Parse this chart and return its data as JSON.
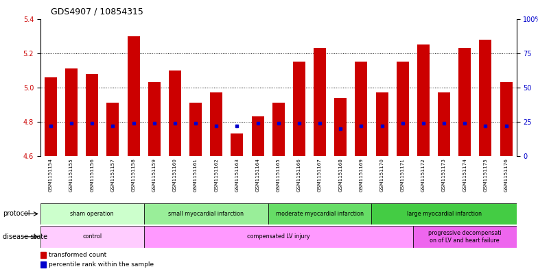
{
  "title": "GDS4907 / 10854315",
  "samples": [
    "GSM1151154",
    "GSM1151155",
    "GSM1151156",
    "GSM1151157",
    "GSM1151158",
    "GSM1151159",
    "GSM1151160",
    "GSM1151161",
    "GSM1151162",
    "GSM1151163",
    "GSM1151164",
    "GSM1151165",
    "GSM1151166",
    "GSM1151167",
    "GSM1151168",
    "GSM1151169",
    "GSM1151170",
    "GSM1151171",
    "GSM1151172",
    "GSM1151173",
    "GSM1151174",
    "GSM1151175",
    "GSM1151176"
  ],
  "transformed_count": [
    5.06,
    5.11,
    5.08,
    4.91,
    5.3,
    5.03,
    5.1,
    4.91,
    4.97,
    4.73,
    4.83,
    4.91,
    5.15,
    5.23,
    4.94,
    5.15,
    4.97,
    5.15,
    5.25,
    4.97,
    5.23,
    5.28,
    5.03
  ],
  "percentile_rank": [
    22,
    24,
    24,
    22,
    24,
    24,
    24,
    24,
    22,
    22,
    24,
    24,
    24,
    24,
    20,
    22,
    22,
    24,
    24,
    24,
    24,
    22,
    22
  ],
  "ylim_left": [
    4.6,
    5.4
  ],
  "ylim_right": [
    0,
    100
  ],
  "yticks_left": [
    4.6,
    4.8,
    5.0,
    5.2,
    5.4
  ],
  "yticks_right": [
    0,
    25,
    50,
    75,
    100
  ],
  "bar_color": "#cc0000",
  "marker_color": "#0000cc",
  "protocol_groups": [
    {
      "label": "sham operation",
      "start": 0,
      "end": 4,
      "color": "#ccffcc"
    },
    {
      "label": "small myocardial infarction",
      "start": 5,
      "end": 10,
      "color": "#99ee99"
    },
    {
      "label": "moderate myocardial infarction",
      "start": 11,
      "end": 15,
      "color": "#66dd66"
    },
    {
      "label": "large myocardial infarction",
      "start": 16,
      "end": 22,
      "color": "#44cc44"
    }
  ],
  "disease_groups": [
    {
      "label": "control",
      "start": 0,
      "end": 4,
      "color": "#ffccff"
    },
    {
      "label": "compensated LV injury",
      "start": 5,
      "end": 17,
      "color": "#ff99ff"
    },
    {
      "label": "progressive decompensati\non of LV and heart failure",
      "start": 18,
      "end": 22,
      "color": "#ee66ee"
    }
  ],
  "bar_width": 0.6
}
